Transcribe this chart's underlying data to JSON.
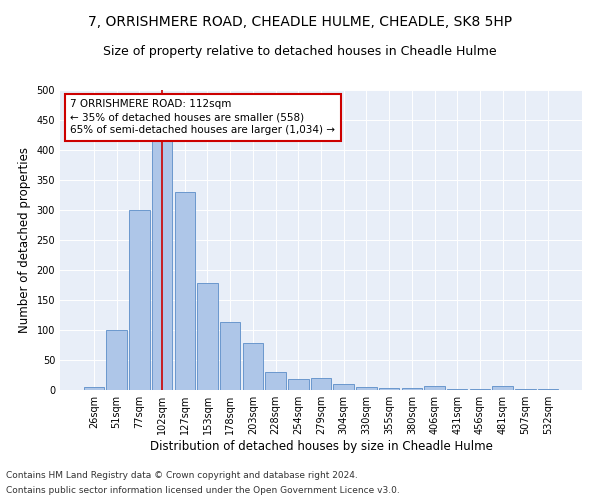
{
  "title": "7, ORRISHMERE ROAD, CHEADLE HULME, CHEADLE, SK8 5HP",
  "subtitle": "Size of property relative to detached houses in Cheadle Hulme",
  "xlabel": "Distribution of detached houses by size in Cheadle Hulme",
  "ylabel": "Number of detached properties",
  "categories": [
    "26sqm",
    "51sqm",
    "77sqm",
    "102sqm",
    "127sqm",
    "153sqm",
    "178sqm",
    "203sqm",
    "228sqm",
    "254sqm",
    "279sqm",
    "304sqm",
    "330sqm",
    "355sqm",
    "380sqm",
    "406sqm",
    "431sqm",
    "456sqm",
    "481sqm",
    "507sqm",
    "532sqm"
  ],
  "values": [
    5,
    100,
    300,
    415,
    330,
    178,
    113,
    78,
    30,
    18,
    20,
    10,
    5,
    3,
    3,
    6,
    2,
    1,
    6,
    2,
    1
  ],
  "bar_color": "#aec6e8",
  "bar_edge_color": "#5b8dc8",
  "highlight_bar_index": 3,
  "highlight_color": "#cc0000",
  "annotation_title": "7 ORRISHMERE ROAD: 112sqm",
  "annotation_line1": "← 35% of detached houses are smaller (558)",
  "annotation_line2": "65% of semi-detached houses are larger (1,034) →",
  "annotation_box_color": "#ffffff",
  "annotation_box_edge": "#cc0000",
  "footer_line1": "Contains HM Land Registry data © Crown copyright and database right 2024.",
  "footer_line2": "Contains public sector information licensed under the Open Government Licence v3.0.",
  "ylim": [
    0,
    500
  ],
  "yticks": [
    0,
    50,
    100,
    150,
    200,
    250,
    300,
    350,
    400,
    450,
    500
  ],
  "title_fontsize": 10,
  "subtitle_fontsize": 9,
  "xlabel_fontsize": 8.5,
  "ylabel_fontsize": 8.5,
  "tick_fontsize": 7,
  "footer_fontsize": 6.5,
  "annotation_fontsize": 7.5,
  "bg_color": "#e8eef8",
  "fig_bg_color": "#ffffff"
}
